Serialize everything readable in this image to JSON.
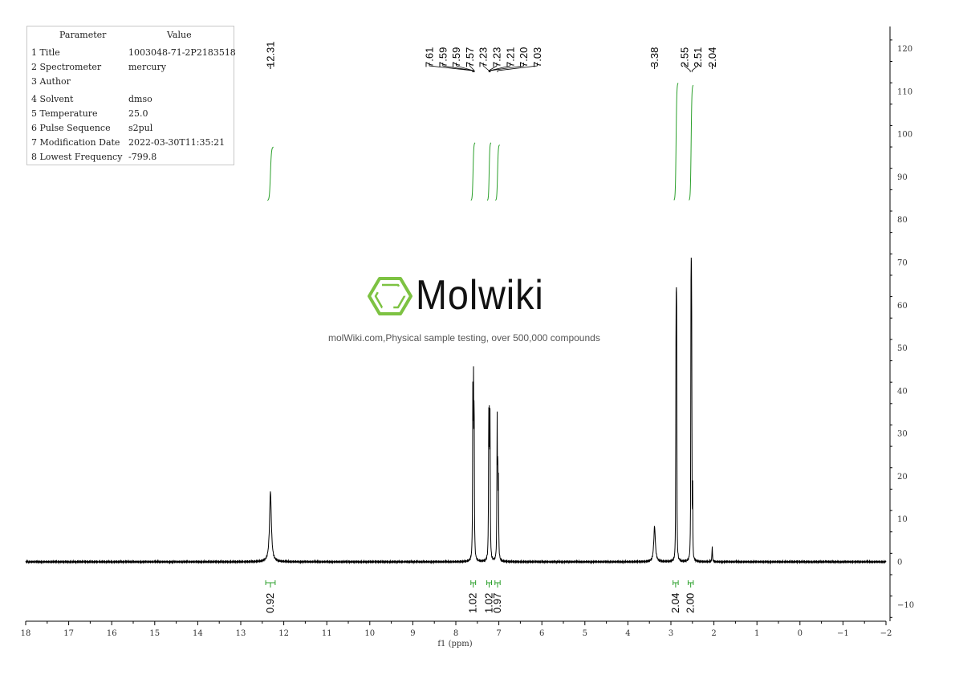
{
  "parameters": {
    "header": {
      "key": "Parameter",
      "value": "Value"
    },
    "rows": [
      {
        "key": "1 Title",
        "value": "1003048-71-2P2183518"
      },
      {
        "key": "2 Spectrometer",
        "value": "mercury"
      },
      {
        "key": "3 Author",
        "value": ""
      },
      {
        "key": "4 Solvent",
        "value": "dmso"
      },
      {
        "key": "5 Temperature",
        "value": "25.0"
      },
      {
        "key": "6 Pulse Sequence",
        "value": "s2pul"
      },
      {
        "key": "7 Modification Date",
        "value": "2022-03-30T11:35:21"
      },
      {
        "key": "8 Lowest Frequency",
        "value": "-799.8"
      }
    ]
  },
  "watermark": {
    "brand": "Molwiki",
    "tagline": "molWiki.com,Physical sample testing, over 500,000 compounds",
    "logo_color": "#7dc242",
    "logo_icon": "benzene-ring-icon"
  },
  "chart_data": {
    "type": "line",
    "xlabel": "f1 (ppm)",
    "xlim": [
      18,
      -2
    ],
    "ylim": [
      -13,
      127
    ],
    "x_ticks": [
      18,
      17,
      16,
      15,
      14,
      13,
      12,
      11,
      10,
      9,
      8,
      7,
      6,
      5,
      4,
      3,
      2,
      1,
      0,
      -1,
      -2
    ],
    "x_tick_labels": [
      "18",
      "17",
      "16",
      "15",
      "14",
      "13",
      "12",
      "11",
      "10",
      "9",
      "8",
      "7",
      "6",
      "5",
      "4",
      "3",
      "2",
      "1",
      "0",
      "−1",
      "−2"
    ],
    "y_ticks": [
      -10,
      0,
      10,
      20,
      30,
      40,
      50,
      60,
      70,
      80,
      90,
      100,
      110,
      120
    ],
    "y_tick_labels": [
      "−10",
      "0",
      "10",
      "20",
      "30",
      "40",
      "50",
      "60",
      "70",
      "80",
      "90",
      "100",
      "110",
      "120"
    ],
    "spectrum_color": "#000000",
    "integral_color": "#2ca02c",
    "peaks": [
      {
        "ppm": 12.31,
        "height": 16.5,
        "width": 0.025
      },
      {
        "ppm": 7.605,
        "height": 36.0,
        "width": 0.006
      },
      {
        "ppm": 7.59,
        "height": 37.0,
        "width": 0.006
      },
      {
        "ppm": 7.575,
        "height": 35.0,
        "width": 0.006
      },
      {
        "ppm": 7.235,
        "height": 32.0,
        "width": 0.006
      },
      {
        "ppm": 7.22,
        "height": 31.0,
        "width": 0.006
      },
      {
        "ppm": 7.205,
        "height": 30.0,
        "width": 0.006
      },
      {
        "ppm": 7.04,
        "height": 32.5,
        "width": 0.006
      },
      {
        "ppm": 7.025,
        "height": 20.0,
        "width": 0.006
      },
      {
        "ppm": 7.01,
        "height": 17.0,
        "width": 0.006
      },
      {
        "ppm": 3.38,
        "height": 8.3,
        "width": 0.022
      },
      {
        "ppm": 2.885,
        "height": 41.0,
        "width": 0.004
      },
      {
        "ppm": 2.875,
        "height": 72.0,
        "width": 0.004
      },
      {
        "ppm": 2.865,
        "height": 52.0,
        "width": 0.004
      },
      {
        "ppm": 2.535,
        "height": 57.0,
        "width": 0.004
      },
      {
        "ppm": 2.525,
        "height": 79.0,
        "width": 0.004
      },
      {
        "ppm": 2.515,
        "height": 47.0,
        "width": 0.004
      },
      {
        "ppm": 2.495,
        "height": 16.0,
        "width": 0.004
      },
      {
        "ppm": 2.04,
        "height": 4.0,
        "width": 0.006
      }
    ],
    "integral_curves": [
      {
        "from": 12.38,
        "to": 12.24,
        "y_start": 84.5,
        "y_end": 97.0
      },
      {
        "from": 7.65,
        "to": 7.55,
        "y_start": 84.5,
        "y_end": 98.0
      },
      {
        "from": 7.27,
        "to": 7.18,
        "y_start": 84.5,
        "y_end": 98.0
      },
      {
        "from": 7.08,
        "to": 6.98,
        "y_start": 84.5,
        "y_end": 97.5
      },
      {
        "from": 2.93,
        "to": 2.83,
        "y_start": 84.5,
        "y_end": 112.0
      },
      {
        "from": 2.58,
        "to": 2.48,
        "y_start": 84.5,
        "y_end": 111.5
      }
    ],
    "integrals": [
      {
        "from": 12.42,
        "to": 12.2,
        "value": "0.92"
      },
      {
        "from": 7.65,
        "to": 7.54,
        "value": "1.02"
      },
      {
        "from": 7.28,
        "to": 7.17,
        "value": "1.02"
      },
      {
        "from": 7.09,
        "to": 6.97,
        "value": "0.97"
      },
      {
        "from": 2.95,
        "to": 2.83,
        "value": "2.04"
      },
      {
        "from": 2.6,
        "to": 2.48,
        "value": "2.00"
      }
    ],
    "peak_label_groups": [
      {
        "labels": [
          "12.31"
        ],
        "targets": [
          12.31
        ],
        "straight": true
      },
      {
        "labels": [
          "7.61",
          "7.59",
          "7.59",
          "7.57",
          "7.23",
          "7.23",
          "7.21",
          "7.20",
          "7.03"
        ],
        "targets": [
          7.61,
          7.59,
          7.59,
          7.57,
          7.23,
          7.23,
          7.21,
          7.2,
          7.03
        ],
        "straight": false
      },
      {
        "labels": [
          "3.38"
        ],
        "targets": [
          3.38
        ],
        "straight": true
      },
      {
        "labels": [
          "2.55",
          "2.51"
        ],
        "targets": [
          2.55,
          2.51
        ],
        "straight": false
      },
      {
        "labels": [
          "2.04"
        ],
        "targets": [
          2.04
        ],
        "straight": true
      }
    ]
  }
}
